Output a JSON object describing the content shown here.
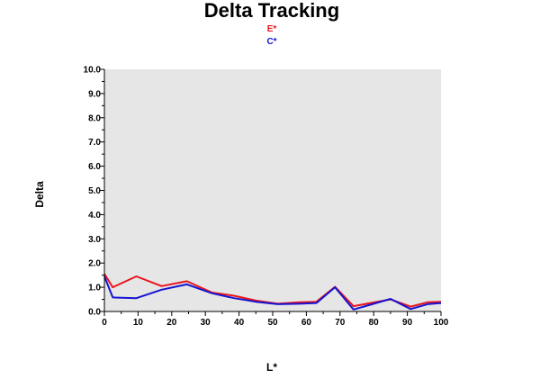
{
  "chart_data": {
    "type": "line",
    "title": "Delta Tracking",
    "xlabel": "L*",
    "ylabel": "Delta",
    "xlim": [
      0,
      100
    ],
    "ylim": [
      0,
      10
    ],
    "xticks": [
      "0",
      "10",
      "20",
      "30",
      "40",
      "50",
      "60",
      "70",
      "80",
      "90",
      "100"
    ],
    "yticks": [
      "0.0",
      "1.0",
      "2.0",
      "3.0",
      "4.0",
      "5.0",
      "6.0",
      "7.0",
      "8.0",
      "9.0",
      "10.0"
    ],
    "plot_background": "#e6e6e6",
    "grid": false,
    "legend_position": "top-center",
    "series": [
      {
        "name": "E*",
        "color": "#e8141e",
        "x": [
          0,
          2.5,
          9.5,
          17,
          24.5,
          32,
          38.5,
          45,
          51.5,
          58,
          63,
          68.5,
          74,
          79,
          85,
          91,
          96,
          100
        ],
        "y": [
          1.55,
          1.0,
          1.45,
          1.05,
          1.25,
          0.78,
          0.65,
          0.45,
          0.32,
          0.38,
          0.4,
          1.02,
          0.22,
          0.35,
          0.5,
          0.2,
          0.38,
          0.4
        ]
      },
      {
        "name": "C*",
        "color": "#1414d2",
        "x": [
          0,
          2.5,
          9.5,
          17,
          24.5,
          32,
          38.5,
          45,
          51.5,
          58,
          63,
          68.5,
          74,
          79,
          85,
          91,
          96,
          100
        ],
        "y": [
          1.45,
          0.58,
          0.55,
          0.9,
          1.12,
          0.75,
          0.55,
          0.4,
          0.3,
          0.32,
          0.35,
          1.0,
          0.08,
          0.28,
          0.52,
          0.1,
          0.3,
          0.35
        ]
      }
    ]
  }
}
